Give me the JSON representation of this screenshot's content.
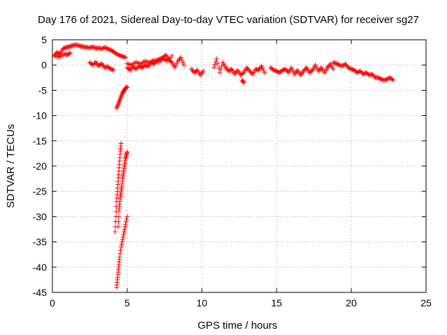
{
  "chart_data": {
    "type": "scatter",
    "title": "Day 176 of 2021, Sidereal Day-to-day VTEC variation (SDTVAR) for receiver sg27",
    "xlabel": "GPS time / hours",
    "ylabel": "SDTVAR / TECUs",
    "xlim": [
      0,
      25
    ],
    "ylim": [
      -45,
      5
    ],
    "xticks": [
      "0",
      "5",
      "10",
      "15",
      "20",
      "25"
    ],
    "yticks": [
      "5",
      "0",
      "-5",
      "-10",
      "-15",
      "-20",
      "-25",
      "-30",
      "-35",
      "-40",
      "-45"
    ],
    "grid": true,
    "marker": "+",
    "color": "#ff0000",
    "series": [
      {
        "name": "SDTVAR",
        "segments": [
          {
            "x": [
              0.1,
              0.3,
              0.5,
              0.7,
              0.9,
              1.1,
              1.3,
              1.5,
              1.7,
              1.9,
              2.1,
              2.3,
              2.5,
              2.7,
              2.9,
              3.1,
              3.3,
              3.5,
              3.7,
              3.9,
              4.1,
              4.3,
              4.5,
              4.7,
              4.9
            ],
            "y": [
              1.8,
              2.5,
              2.2,
              3.2,
              3.5,
              3.6,
              3.8,
              4.0,
              3.9,
              3.7,
              3.6,
              3.5,
              3.4,
              3.6,
              3.3,
              3.4,
              3.2,
              3.5,
              3.2,
              3.0,
              2.6,
              2.2,
              1.9,
              1.7,
              1.5
            ]
          },
          {
            "x": [
              0.2,
              0.5,
              0.8,
              1.0,
              1.2
            ],
            "y": [
              1.8,
              1.6,
              2.2,
              2.0,
              2.4
            ]
          },
          {
            "x": [
              2.5,
              2.7,
              2.9,
              3.1,
              3.3,
              3.5,
              3.7,
              3.9,
              4.1
            ],
            "y": [
              0.5,
              0.0,
              0.6,
              -0.2,
              0.3,
              -0.5,
              -0.3,
              -0.8,
              -1.0
            ]
          },
          {
            "x": [
              5.0,
              5.2,
              5.4,
              5.6,
              5.8,
              6.0,
              6.2,
              6.4,
              6.6,
              6.8,
              7.0,
              7.2,
              7.4,
              7.6,
              7.8,
              8.0,
              8.2,
              8.4,
              8.6,
              8.8
            ],
            "y": [
              -0.5,
              -1.0,
              -0.3,
              -0.8,
              -0.2,
              -0.5,
              0.0,
              -0.3,
              0.5,
              0.2,
              1.0,
              1.2,
              1.5,
              2.0,
              1.0,
              0.5,
              -0.5,
              0.8,
              1.5,
              0.0
            ]
          },
          {
            "x": [
              5.0,
              5.3,
              5.6,
              5.9,
              6.2,
              6.5,
              6.8,
              7.1,
              7.4,
              7.7,
              8.0
            ],
            "y": [
              0.3,
              0.0,
              0.6,
              0.2,
              0.8,
              0.5,
              1.0,
              0.6,
              1.2,
              0.8,
              1.8
            ]
          },
          {
            "x": [
              4.3,
              4.4,
              4.5,
              4.6,
              4.7,
              4.8,
              4.9,
              5.0
            ],
            "y": [
              -8.5,
              -7.8,
              -7.0,
              -6.2,
              -5.5,
              -5.0,
              -4.6,
              -4.3
            ]
          },
          {
            "x": [
              9.3,
              9.5,
              9.7,
              9.9,
              10.1
            ],
            "y": [
              -0.8,
              -1.5,
              -1.0,
              -2.0,
              -1.2
            ]
          },
          {
            "x": [
              10.8,
              11.0,
              11.2,
              11.4,
              11.6,
              11.8,
              12.0,
              12.2,
              12.4,
              12.6,
              12.8,
              13.0,
              13.2,
              13.4,
              13.6,
              13.8,
              14.0,
              14.2
            ],
            "y": [
              -0.5,
              1.2,
              -1.5,
              0.5,
              -0.5,
              -1.2,
              -0.8,
              -1.8,
              -1.0,
              -2.0,
              -1.5,
              -0.5,
              -1.2,
              -1.8,
              -0.8,
              -1.0,
              -0.2,
              -1.5
            ]
          },
          {
            "x": [
              12.7,
              12.8
            ],
            "y": [
              -3.0,
              -3.5
            ]
          },
          {
            "x": [
              14.6,
              14.8,
              15.0,
              15.2,
              15.4,
              15.6,
              15.8,
              16.0,
              16.2,
              16.4,
              16.6,
              16.8,
              17.0,
              17.2,
              17.4,
              17.6,
              17.8,
              18.0,
              18.2,
              18.4,
              18.6,
              18.8
            ],
            "y": [
              -0.5,
              -1.0,
              -1.2,
              -1.5,
              -1.0,
              -0.8,
              -1.5,
              -0.5,
              -1.8,
              -1.0,
              -2.0,
              -1.2,
              -0.5,
              -1.5,
              -1.0,
              0.0,
              -1.2,
              -0.5,
              -1.5,
              -0.5,
              0.2,
              -0.8
            ]
          },
          {
            "x": [
              18.8,
              19.0,
              19.2,
              19.4,
              19.6,
              19.8,
              20.0,
              20.2,
              20.4,
              20.6,
              20.8,
              21.0,
              21.2,
              21.4,
              21.6,
              21.8,
              22.0,
              22.2,
              22.4,
              22.6,
              22.8
            ],
            "y": [
              0.5,
              0.3,
              0.0,
              -0.2,
              0.2,
              -0.5,
              -0.8,
              -1.0,
              -1.5,
              -1.2,
              -1.8,
              -1.5,
              -2.0,
              -1.8,
              -2.5,
              -2.5,
              -2.8,
              -3.0,
              -2.8,
              -2.5,
              -3.0
            ]
          },
          {
            "x": [
              4.2,
              4.25,
              4.3,
              4.35,
              4.4,
              4.45,
              4.5,
              4.55,
              4.6
            ],
            "y": [
              -33.0,
              -30.0,
              -27.0,
              -25.0,
              -23.0,
              -21.0,
              -19.0,
              -17.0,
              -15.5
            ]
          },
          {
            "x": [
              4.4,
              4.45,
              4.5,
              4.55,
              4.6,
              4.65,
              4.7,
              4.75,
              4.8,
              4.85,
              4.9,
              4.95,
              5.0
            ],
            "y": [
              -32.0,
              -29.0,
              -27.5,
              -26.0,
              -25.0,
              -24.0,
              -22.5,
              -21.5,
              -20.5,
              -19.5,
              -18.5,
              -17.8,
              -17.2
            ]
          },
          {
            "x": [
              4.3,
              4.35,
              4.4,
              4.45,
              4.5,
              4.6,
              4.7,
              4.8,
              4.9,
              5.0
            ],
            "y": [
              -44.0,
              -42.5,
              -41.0,
              -39.5,
              -38.0,
              -36.0,
              -34.5,
              -33.0,
              -31.5,
              -30.0
            ]
          }
        ]
      }
    ]
  }
}
